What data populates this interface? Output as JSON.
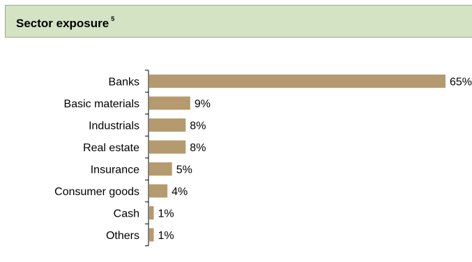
{
  "header": {
    "title": "Sector exposure",
    "footnote": "5"
  },
  "chart_data": {
    "type": "bar",
    "orientation": "horizontal",
    "categories": [
      "Banks",
      "Basic materials",
      "Industrials",
      "Real estate",
      "Insurance",
      "Consumer goods",
      "Cash",
      "Others"
    ],
    "values": [
      65,
      9,
      8,
      8,
      5,
      4,
      1,
      1
    ],
    "value_labels": [
      "65%",
      "9%",
      "8%",
      "8%",
      "5%",
      "4%",
      "1%",
      "1%"
    ],
    "xlim": [
      0,
      65
    ],
    "grid": false,
    "bar_color": "#b49a6e"
  }
}
